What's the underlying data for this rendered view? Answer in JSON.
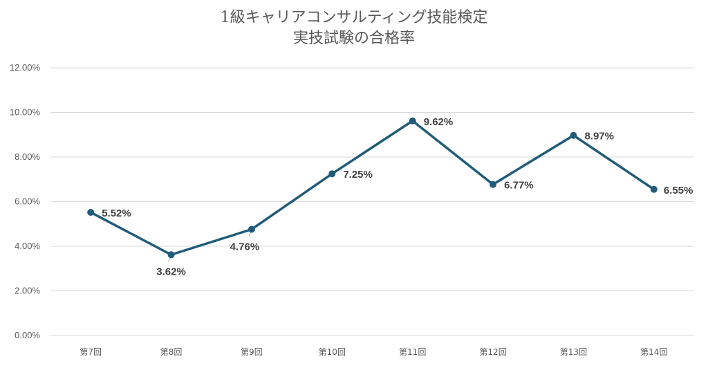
{
  "chart_data": {
    "type": "line",
    "title": [
      "1級キャリアコンサルティング技能検定",
      "実技試験の合格率"
    ],
    "xlabel": "",
    "ylabel": "",
    "categories": [
      "第7回",
      "第8回",
      "第9回",
      "第10回",
      "第11回",
      "第12回",
      "第13回",
      "第14回"
    ],
    "series": [
      {
        "values": [
          5.52,
          3.62,
          4.76,
          7.25,
          9.62,
          6.77,
          8.97,
          6.55
        ]
      }
    ],
    "data_labels": [
      "5.52%",
      "3.62%",
      "4.76%",
      "7.25%",
      "9.62%",
      "6.77%",
      "8.97%",
      "6.55%"
    ],
    "ylim": [
      0,
      12
    ],
    "y_ticks": [
      "0.00%",
      "2.00%",
      "4.00%",
      "6.00%",
      "8.00%",
      "10.00%",
      "12.00%"
    ],
    "grid": true,
    "legend": "none",
    "line_color": "#1f5b7a",
    "grid_color": "#d9d9d9",
    "text_color": "#595959"
  }
}
